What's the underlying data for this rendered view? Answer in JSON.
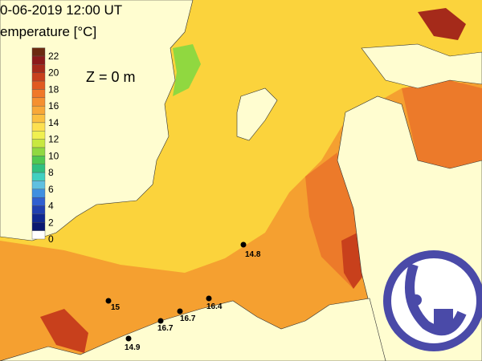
{
  "header": {
    "title": "0-06-2019 12:00 UT",
    "subtitle": "emperature [°C]"
  },
  "depth_label": "Z = 0 m",
  "colorbar": {
    "ticks": [
      22,
      20,
      18,
      16,
      14,
      12,
      10,
      8,
      6,
      4,
      2,
      0
    ],
    "colors": [
      "#6b2a10",
      "#8b1a1a",
      "#a52a1a",
      "#c8401c",
      "#e05a20",
      "#f07828",
      "#f59030",
      "#f8a838",
      "#fbc040",
      "#fde050",
      "#f0f050",
      "#c8e840",
      "#90d840",
      "#50c850",
      "#30c080",
      "#40d0c0",
      "#60c0e0",
      "#4090e0",
      "#3060d0",
      "#2040b0",
      "#102890",
      "#0a1870",
      "#ffffff"
    ]
  },
  "stations": [
    {
      "label": "14.8"
    },
    {
      "label": "15"
    },
    {
      "label": "16.7"
    },
    {
      "label": "16.4"
    },
    {
      "label": "16.7"
    },
    {
      "label": "14.9"
    }
  ]
}
